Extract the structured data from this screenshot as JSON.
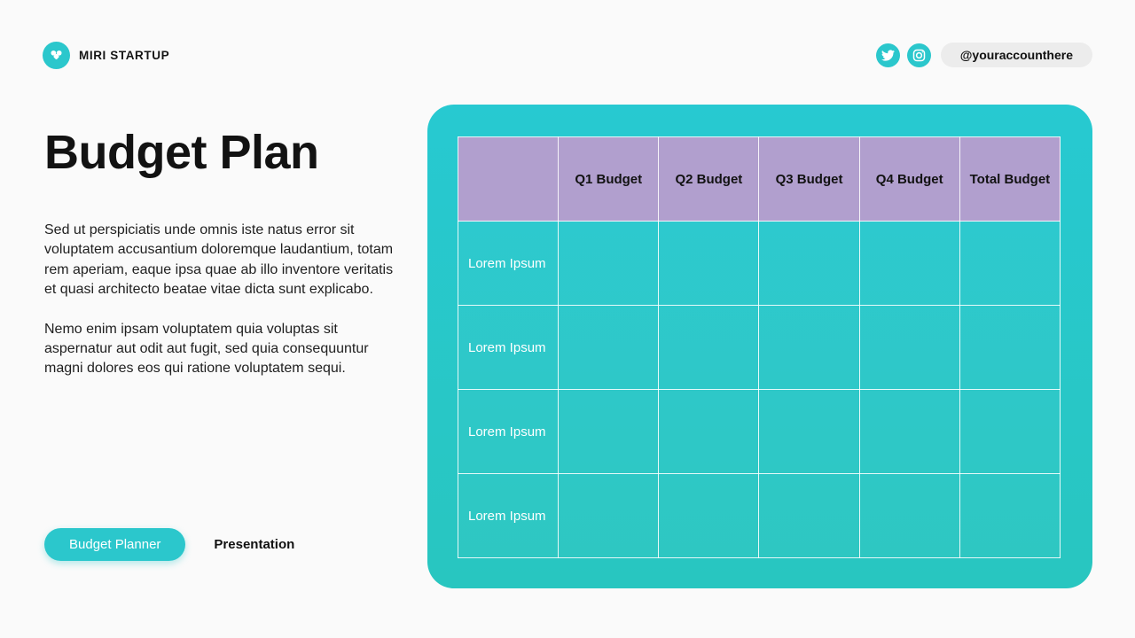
{
  "brand": {
    "name": "MIRI STARTUP"
  },
  "social": {
    "handle": "@youraccounthere",
    "icons": [
      "twitter-icon",
      "instagram-icon"
    ]
  },
  "hero": {
    "title": "Budget Plan",
    "paragraphs": [
      "Sed ut perspiciatis unde omnis iste natus error sit voluptatem accusantium doloremque laudantium, totam rem aperiam, eaque ipsa quae ab illo inventore veritatis et quasi architecto beatae vitae dicta sunt explicabo.",
      "Nemo enim ipsam voluptatem quia voluptas sit aspernatur aut odit aut fugit, sed quia consequuntur magni dolores eos qui ratione voluptatem sequi."
    ]
  },
  "footer": {
    "primary_button": "Budget Planner",
    "secondary_label": "Presentation"
  },
  "table": {
    "columns": [
      "",
      "Q1 Budget",
      "Q2 Budget",
      "Q3 Budget",
      "Q4 Budget",
      "Total Budget"
    ],
    "rows": [
      {
        "label": "Lorem Ipsum",
        "values": [
          "",
          "",
          "",
          "",
          ""
        ]
      },
      {
        "label": "Lorem Ipsum",
        "values": [
          "",
          "",
          "",
          "",
          ""
        ]
      },
      {
        "label": "Lorem Ipsum",
        "values": [
          "",
          "",
          "",
          "",
          ""
        ]
      },
      {
        "label": "Lorem Ipsum",
        "values": [
          "",
          "",
          "",
          "",
          ""
        ]
      }
    ]
  },
  "colors": {
    "teal": "#2bc7cc",
    "teal_top": "#27c9d1",
    "teal_bottom": "#28c6c0",
    "purple": "#b19fce",
    "pill_gray": "#ececec",
    "background": "#fafafa"
  }
}
